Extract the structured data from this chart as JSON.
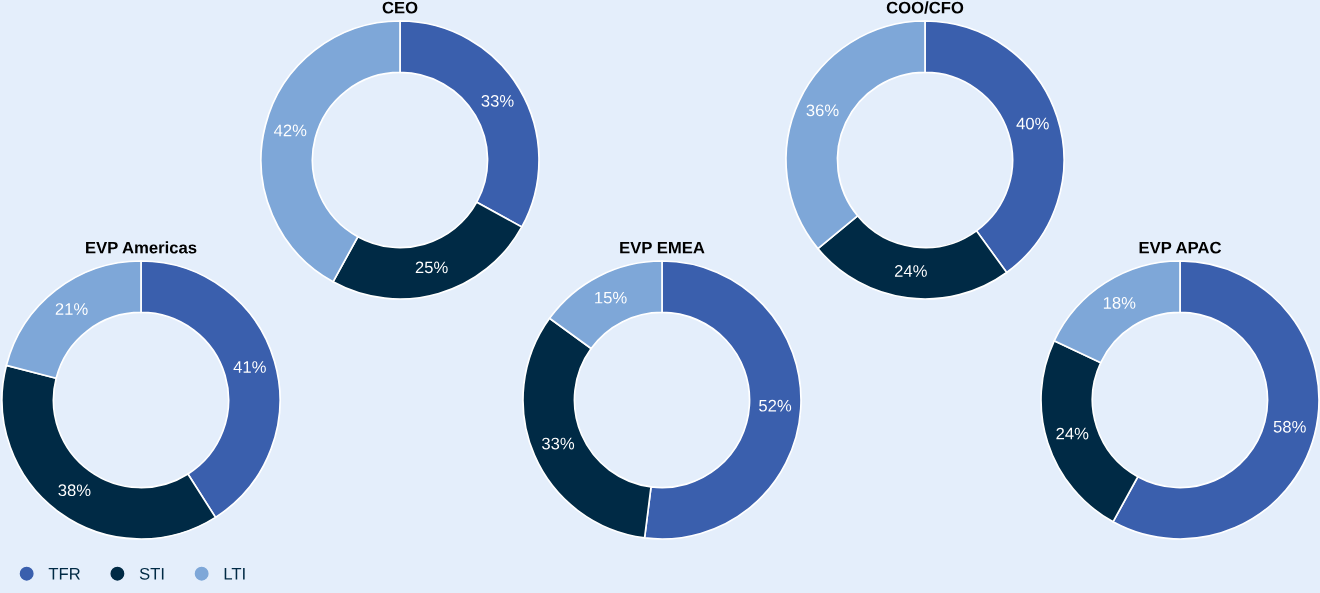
{
  "chart_data": [
    {
      "type": "donut",
      "title": "CEO",
      "categories": [
        "TFR",
        "STI",
        "LTI"
      ],
      "values": [
        33,
        25,
        42
      ],
      "colors": [
        "#3a5fad",
        "#002a45",
        "#7ea7d8"
      ],
      "value_labels": [
        "33%",
        "25%",
        "42%"
      ],
      "legend": "bottom left"
    },
    {
      "type": "donut",
      "title": "COO/CFO",
      "categories": [
        null,
        null,
        null
      ],
      "values": [
        40,
        24,
        36
      ],
      "colors": [
        "#3a5fad",
        "#002a45",
        "#7ea7d8"
      ],
      "value_labels": [
        "40%",
        "24%",
        "36%"
      ]
    },
    {
      "type": "donut",
      "title": "EVP Americas",
      "categories": [
        null,
        null,
        null
      ],
      "values": [
        41,
        38,
        21
      ],
      "colors": [
        "#3a5fad",
        "#002a45",
        "#7ea7d8"
      ],
      "value_labels": [
        "41%",
        "38%",
        "21%"
      ]
    },
    {
      "type": "donut",
      "title": "EVP EMEA",
      "categories": [
        null,
        null,
        null
      ],
      "values": [
        52,
        33,
        15
      ],
      "colors": [
        "#3a5fad",
        "#002a45",
        "#7ea7d8"
      ],
      "value_labels": [
        "52%",
        "33%",
        "15%"
      ]
    },
    {
      "type": "donut",
      "title": "EVP APAC",
      "categories": [
        null,
        null,
        null
      ],
      "values": [
        58,
        24,
        18
      ],
      "colors": [
        "#3a5fad",
        "#002a45",
        "#7ea7d8"
      ],
      "value_labels": [
        "58%",
        "24%",
        "18%"
      ]
    }
  ]
}
